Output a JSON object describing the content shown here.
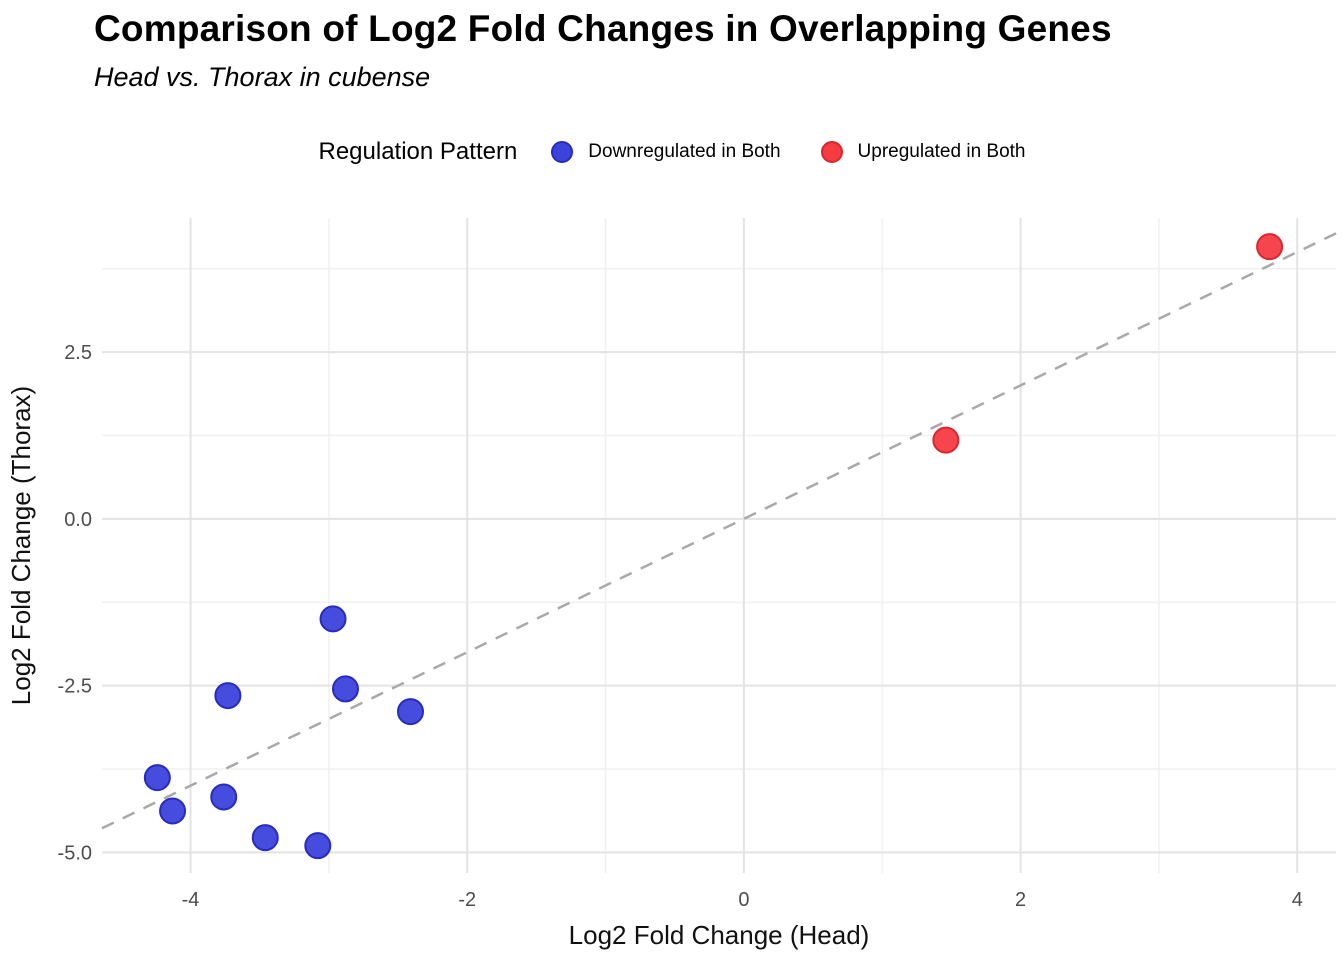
{
  "header": {
    "title": "Comparison of Log2 Fold Changes in Overlapping Genes",
    "subtitle": "Head vs. Thorax in cubense"
  },
  "chart_data": {
    "type": "scatter",
    "title": "Comparison of Log2 Fold Changes in Overlapping Genes",
    "subtitle": "Head vs. Thorax in cubense",
    "legend_title": "Regulation Pattern",
    "legend_position": "top-center",
    "grid": "on",
    "background": "#ffffff",
    "x_axis": {
      "label": "Log2 Fold Change (Head)",
      "range": [
        -4.64,
        4.28
      ],
      "major_ticks": [
        -4,
        -2,
        0,
        2,
        4
      ],
      "tick_labels": [
        "-4",
        "-2",
        "0",
        "2",
        "4"
      ],
      "minor_ticks": [
        -3,
        -1,
        1,
        3
      ]
    },
    "y_axis": {
      "label": "Log2 Fold Change (Thorax)",
      "range": [
        -5.31,
        4.51
      ],
      "major_ticks": [
        2.5,
        0,
        -2.5,
        -5
      ],
      "tick_labels": [
        "2.5",
        "0.0",
        "-2.5",
        "-5.0"
      ],
      "minor_ticks": [
        3.75,
        1.25,
        -1.25,
        -3.75
      ]
    },
    "series": [
      {
        "name": "Downregulated in Both",
        "color": "#3c42dc",
        "stroke": "#272cbd",
        "points": [
          [
            -2.97,
            -1.5
          ],
          [
            -2.88,
            -2.55
          ],
          [
            -2.41,
            -2.89
          ],
          [
            -3.73,
            -2.65
          ],
          [
            -4.24,
            -3.88
          ],
          [
            -4.13,
            -4.38
          ],
          [
            -3.76,
            -4.17
          ],
          [
            -3.46,
            -4.78
          ],
          [
            -3.08,
            -4.9
          ]
        ]
      },
      {
        "name": "Upregulated in Both",
        "color": "#f63b42",
        "stroke": "#d9272f",
        "points": [
          [
            1.46,
            1.18
          ],
          [
            3.8,
            4.08
          ]
        ]
      }
    ],
    "reference_line": {
      "type": "identity (y = x)",
      "style": "dashed",
      "color": "#a9a9a9"
    },
    "gridline_major_color": "#e3e3e3",
    "gridline_minor_color": "#f0f0f0"
  }
}
